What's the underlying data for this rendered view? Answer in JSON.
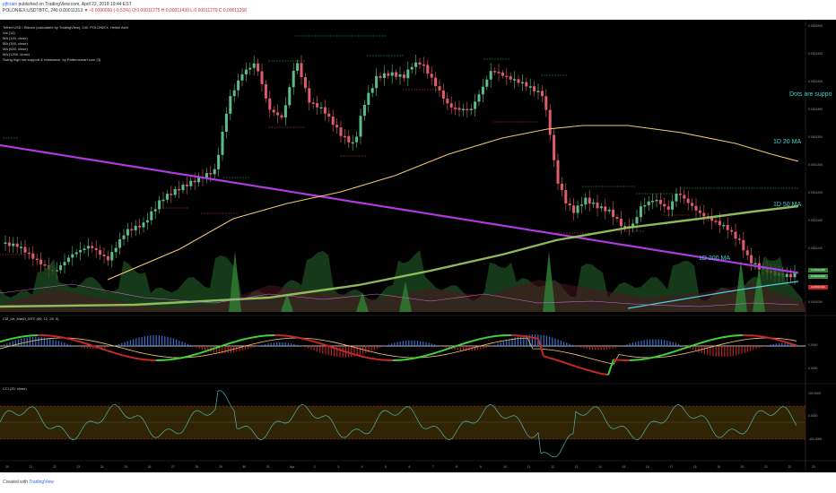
{
  "header": {
    "user": "pjfcrain",
    "published": "published on TradingView.com, April 22, 2018 19:44 EST",
    "symbol_line": "POLONIEX:USDTBTC, 240",
    "o": "0.00011313",
    "change": "▼ -0.0000060 (-0.53%)",
    "h": "O:0.00011275",
    "l": "H:0.00011430",
    "c": "L:0.00011279",
    "extra": "C:0.00011268"
  },
  "legend": [
    "Tether USD / Bitcoin (calculated by TradingView), 240, POLONIEX, Heikin Ashi",
    "Vol (14)",
    "MA (120, close)",
    "MA (300, close)",
    "MA (600, close)",
    "MA (1200, close)",
    "Swing high low support & resistance, by Patternsmart.com (3)"
  ],
  "price_scale": [
    "0.0001500",
    "0.0001450",
    "0.0001400",
    "0.0001350",
    "0.0001300",
    "0.0001250",
    "0.0001200",
    "0.0001150",
    "0.0001100",
    "0.0001050"
  ],
  "price_tags": [
    {
      "value": "0.00011268",
      "color": "#2e7d32"
    },
    {
      "value": "0.00011313",
      "color": "#388e3c"
    },
    {
      "value": "0.00011042",
      "color": "#c62828"
    }
  ],
  "annotations": {
    "dots": "Dots are suppo",
    "ma20": "1D 20 MA",
    "ma50": "1D 50 MA",
    "ma200": "1D 200 MA"
  },
  "macd_panel": {
    "title": "CM_Ult_MacD_MTF (60, 12, 26, 9)",
    "scale": [
      "0.0000",
      "0.0000"
    ]
  },
  "cci_panel": {
    "title": "CCI (20, close)",
    "scale": [
      "100.0000",
      "0.0000",
      "-100.0000"
    ]
  },
  "x_labels": [
    "20",
    "21",
    "22",
    "23",
    "24",
    "25",
    "26",
    "27",
    "28",
    "29",
    "30",
    "31",
    "Apr",
    "2",
    "3",
    "4",
    "5",
    "6",
    "7",
    "8",
    "9",
    "10",
    "11",
    "12",
    "13",
    "14",
    "15",
    "16",
    "17",
    "18",
    "19",
    "20",
    "21",
    "22",
    "23"
  ],
  "footer": {
    "created": "Created with",
    "brand": "TradingView"
  },
  "chart_data": {
    "type": "candlestick",
    "title": "",
    "x_range_labels": [
      "20",
      "23"
    ],
    "series": [
      {
        "name": "1D 20 MA",
        "color": "#f2c46f"
      },
      {
        "name": "1D 50 MA",
        "color": "#9ccc65"
      },
      {
        "name": "1D 200 MA",
        "color": "#b13be0"
      }
    ],
    "panels": [
      "price",
      "CM_Ult_MacD_MTF (60, 12, 26, 9)",
      "CCI (20, close)"
    ],
    "colors": {
      "up": "#5bbd8a",
      "down": "#e05c6b",
      "background": "#000000"
    }
  }
}
